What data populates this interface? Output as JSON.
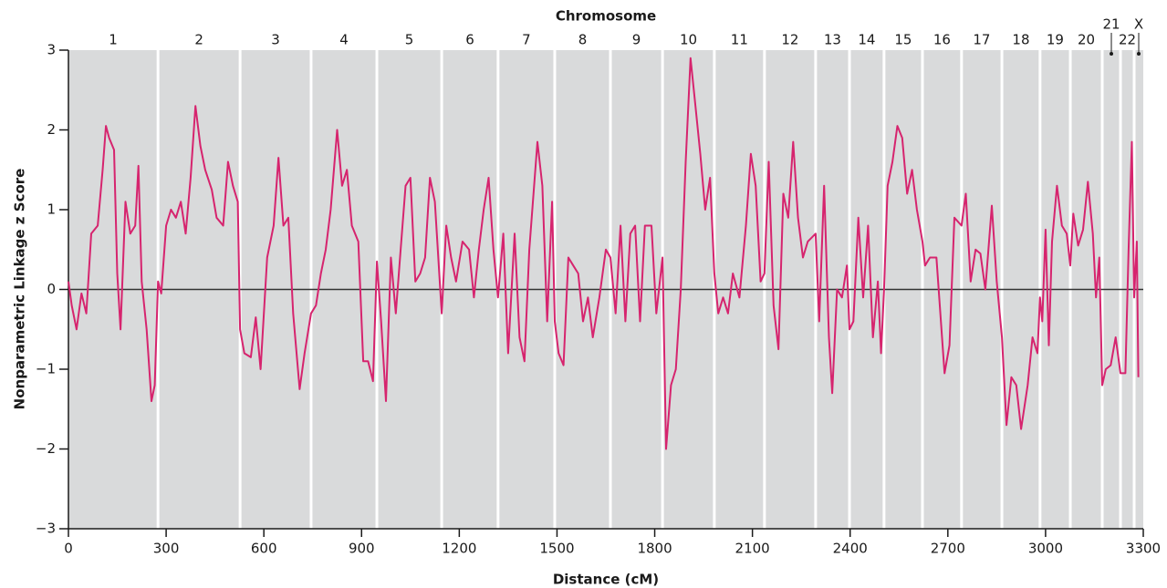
{
  "chart_data": {
    "type": "line",
    "title": "Chromosome",
    "xlabel": "Distance (cM)",
    "ylabel": "Nonparametric Linkage z Score",
    "chromosomes": [
      "1",
      "2",
      "3",
      "4",
      "5",
      "6",
      "7",
      "8",
      "9",
      "10",
      "11",
      "12",
      "13",
      "14",
      "15",
      "16",
      "17",
      "18",
      "19",
      "20",
      "21",
      "22",
      "X"
    ],
    "chromosome_bounds": [
      0,
      275,
      527,
      745,
      947,
      1146,
      1319,
      1493,
      1664,
      1824,
      1983,
      2137,
      2294,
      2398,
      2504,
      2622,
      2742,
      2866,
      2983,
      3076,
      3174,
      3230,
      3272,
      3300
    ],
    "x": [
      0,
      10,
      25,
      40,
      55,
      70,
      90,
      105,
      115,
      125,
      140,
      150,
      160,
      175,
      190,
      205,
      215,
      225,
      240,
      255,
      265,
      275,
      285,
      300,
      315,
      330,
      345,
      360,
      375,
      390,
      405,
      420,
      440,
      455,
      475,
      490,
      505,
      520,
      527,
      540,
      560,
      575,
      590,
      610,
      630,
      645,
      660,
      675,
      690,
      710,
      725,
      745,
      760,
      775,
      790,
      805,
      825,
      840,
      855,
      870,
      890,
      905,
      920,
      935,
      947,
      960,
      975,
      990,
      1005,
      1020,
      1035,
      1050,
      1065,
      1080,
      1095,
      1110,
      1125,
      1146,
      1160,
      1175,
      1190,
      1210,
      1230,
      1245,
      1260,
      1275,
      1290,
      1305,
      1319,
      1335,
      1350,
      1370,
      1385,
      1400,
      1415,
      1440,
      1455,
      1470,
      1485,
      1493,
      1505,
      1520,
      1535,
      1550,
      1565,
      1580,
      1595,
      1610,
      1630,
      1650,
      1664,
      1680,
      1695,
      1710,
      1725,
      1740,
      1755,
      1770,
      1790,
      1805,
      1824,
      1835,
      1850,
      1865,
      1880,
      1895,
      1910,
      1925,
      1940,
      1955,
      1970,
      1983,
      1995,
      2010,
      2025,
      2040,
      2060,
      2080,
      2095,
      2110,
      2125,
      2137,
      2150,
      2165,
      2180,
      2195,
      2210,
      2225,
      2240,
      2255,
      2270,
      2294,
      2305,
      2320,
      2335,
      2345,
      2360,
      2375,
      2390,
      2398,
      2410,
      2425,
      2440,
      2455,
      2470,
      2485,
      2495,
      2504,
      2515,
      2530,
      2545,
      2560,
      2575,
      2590,
      2605,
      2622,
      2630,
      2645,
      2665,
      2690,
      2705,
      2720,
      2742,
      2755,
      2770,
      2785,
      2800,
      2815,
      2835,
      2850,
      2866,
      2880,
      2895,
      2910,
      2925,
      2945,
      2960,
      2975,
      2983,
      2990,
      3000,
      3010,
      3020,
      3035,
      3050,
      3065,
      3076,
      3085,
      3100,
      3115,
      3130,
      3145,
      3155,
      3165,
      3174,
      3185,
      3200,
      3215,
      3230,
      3245,
      3255,
      3265,
      3272,
      3280,
      3285
    ],
    "series": [
      {
        "name": "z score",
        "color": "#d6246e",
        "values": [
          0.1,
          -0.2,
          -0.5,
          -0.05,
          -0.3,
          0.7,
          0.8,
          1.5,
          2.05,
          1.9,
          1.75,
          0.2,
          -0.5,
          1.1,
          0.7,
          0.8,
          1.55,
          0.1,
          -0.5,
          -1.4,
          -1.2,
          0.1,
          -0.05,
          0.8,
          1.0,
          0.9,
          1.1,
          0.7,
          1.4,
          2.3,
          1.8,
          1.5,
          1.25,
          0.9,
          0.8,
          1.6,
          1.3,
          1.1,
          -0.5,
          -0.8,
          -0.85,
          -0.35,
          -1.0,
          0.4,
          0.8,
          1.65,
          0.8,
          0.9,
          -0.3,
          -1.25,
          -0.8,
          -0.3,
          -0.2,
          0.2,
          0.5,
          1.0,
          2.0,
          1.3,
          1.5,
          0.8,
          0.6,
          -0.9,
          -0.9,
          -1.15,
          0.35,
          -0.4,
          -1.4,
          0.4,
          -0.3,
          0.5,
          1.3,
          1.4,
          0.1,
          0.2,
          0.4,
          1.4,
          1.1,
          -0.3,
          0.8,
          0.4,
          0.1,
          0.6,
          0.5,
          -0.1,
          0.5,
          1.0,
          1.4,
          0.5,
          -0.1,
          0.7,
          -0.8,
          0.7,
          -0.6,
          -0.9,
          0.5,
          1.85,
          1.3,
          -0.4,
          1.1,
          -0.4,
          -0.8,
          -0.95,
          0.4,
          0.3,
          0.2,
          -0.4,
          -0.1,
          -0.6,
          -0.1,
          0.5,
          0.4,
          -0.3,
          0.8,
          -0.4,
          0.7,
          0.8,
          -0.4,
          0.8,
          0.8,
          -0.3,
          0.4,
          -2.0,
          -1.2,
          -1.0,
          0.0,
          1.6,
          2.9,
          2.3,
          1.7,
          1.0,
          1.4,
          0.2,
          -0.3,
          -0.1,
          -0.3,
          0.2,
          -0.1,
          0.8,
          1.7,
          1.3,
          0.1,
          0.2,
          1.6,
          -0.2,
          -0.75,
          1.2,
          0.9,
          1.85,
          0.9,
          0.4,
          0.6,
          0.7,
          -0.4,
          1.3,
          -0.6,
          -1.3,
          0.0,
          -0.1,
          0.3,
          -0.5,
          -0.4,
          0.9,
          -0.1,
          0.8,
          -0.6,
          0.1,
          -0.8,
          0.0,
          1.3,
          1.6,
          2.05,
          1.9,
          1.2,
          1.5,
          1.0,
          0.6,
          0.3,
          0.4,
          0.4,
          -1.05,
          -0.7,
          0.9,
          0.8,
          1.2,
          0.1,
          0.5,
          0.45,
          0.0,
          1.05,
          0.1,
          -0.6,
          -1.7,
          -1.1,
          -1.2,
          -1.75,
          -1.2,
          -0.6,
          -0.8,
          -0.1,
          -0.4,
          0.75,
          -0.7,
          0.6,
          1.3,
          0.8,
          0.7,
          0.3,
          0.95,
          0.55,
          0.75,
          1.35,
          0.7,
          -0.1,
          0.4,
          -1.2,
          -1.0,
          -0.95,
          -0.6,
          -1.05,
          -1.05,
          0.5,
          1.85,
          -0.1,
          0.6,
          -1.1
        ]
      }
    ],
    "xlim": [
      0,
      3300
    ],
    "ylim": [
      -3,
      3
    ],
    "xticks": [
      0,
      300,
      600,
      900,
      1200,
      1500,
      1800,
      2100,
      2400,
      2700,
      3000,
      3300
    ],
    "yticks": [
      {
        "value": -3,
        "label": "−3"
      },
      {
        "value": -2,
        "label": "−2"
      },
      {
        "value": -1,
        "label": "−1"
      },
      0,
      1,
      2,
      3
    ]
  }
}
